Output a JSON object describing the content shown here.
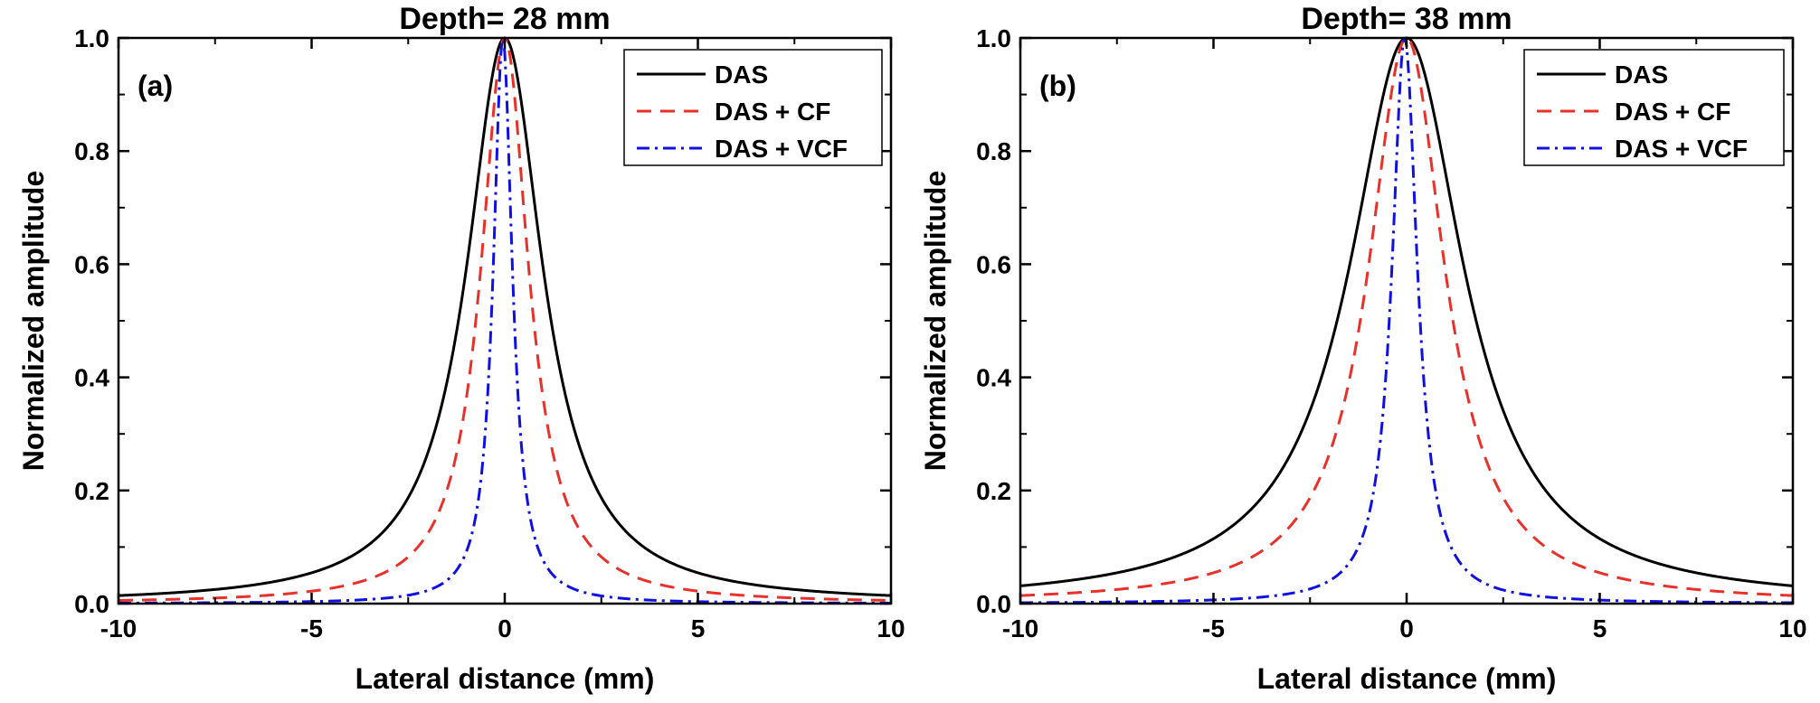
{
  "chart_data": [
    {
      "type": "line",
      "title": "Depth= 28 mm",
      "panel_label": "(a)",
      "xlabel": "Lateral distance (mm)",
      "ylabel": "Normalized amplitude",
      "xlim": [
        -10,
        10
      ],
      "ylim": [
        0,
        1
      ],
      "xticks": [
        "-10",
        "-5",
        "0",
        "5",
        "10"
      ],
      "yticks": [
        "0.0",
        "0.2",
        "0.4",
        "0.6",
        "0.8",
        "1.0"
      ],
      "legend_position": "top-right",
      "series": [
        {
          "name": "DAS",
          "color": "#000000",
          "style": "solid",
          "peak": 1.0,
          "center": 0,
          "half_width": 1.2
        },
        {
          "name": "DAS + CF",
          "color": "#e8312a",
          "style": "dashed",
          "peak": 1.0,
          "center": 0,
          "half_width": 0.75
        },
        {
          "name": "DAS + VCF",
          "color": "#1010e0",
          "style": "dashdot",
          "peak": 1.0,
          "center": -0.05,
          "half_width": 0.3
        }
      ]
    },
    {
      "type": "line",
      "title": "Depth= 38 mm",
      "panel_label": "(b)",
      "xlabel": "Lateral distance (mm)",
      "ylabel": "Normalized amplitude",
      "xlim": [
        -10,
        10
      ],
      "ylim": [
        0,
        1
      ],
      "xticks": [
        "-10",
        "-5",
        "0",
        "5",
        "10"
      ],
      "yticks": [
        "0.0",
        "0.2",
        "0.4",
        "0.6",
        "0.8",
        "1.0"
      ],
      "legend_position": "top-right",
      "series": [
        {
          "name": "DAS",
          "color": "#000000",
          "style": "solid",
          "peak": 1.0,
          "center": 0,
          "half_width": 1.8
        },
        {
          "name": "DAS + CF",
          "color": "#e8312a",
          "style": "dashed",
          "peak": 1.0,
          "center": 0,
          "half_width": 1.2
        },
        {
          "name": "DAS + VCF",
          "color": "#1010e0",
          "style": "dashdot",
          "peak": 1.0,
          "center": -0.05,
          "half_width": 0.4
        }
      ]
    }
  ]
}
